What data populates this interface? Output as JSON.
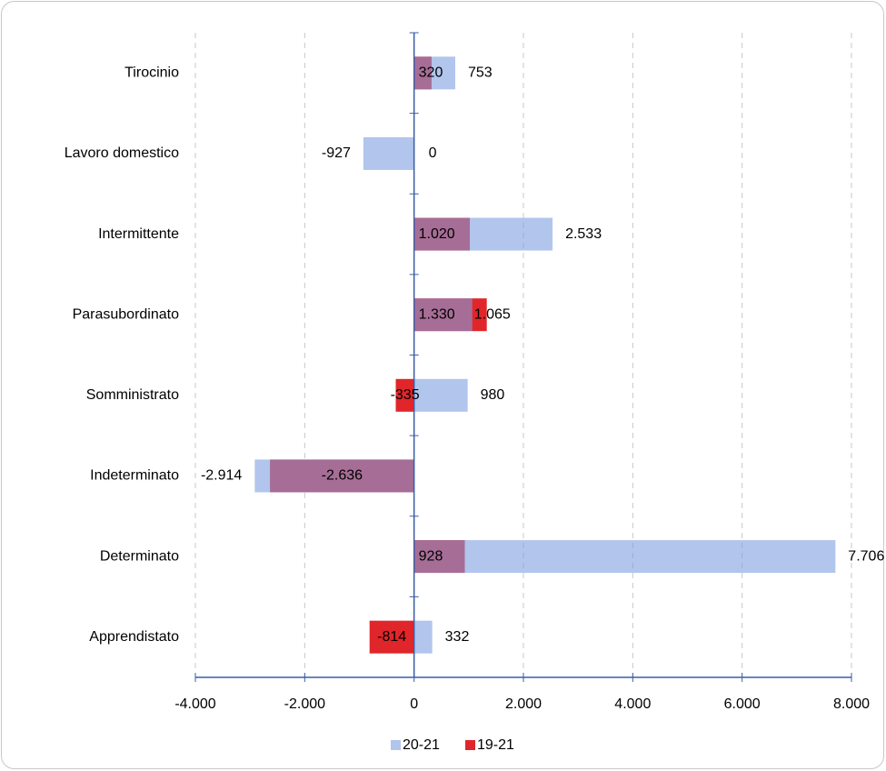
{
  "chart_data": {
    "type": "bar",
    "orientation": "horizontal",
    "overlap": true,
    "categories": [
      "Tirocinio",
      "Lavoro domestico",
      "Intermittente",
      "Parasubordinato",
      "Somministrato",
      "Indeterminato",
      "Determinato",
      "Apprendistato"
    ],
    "series": [
      {
        "name": "19-21",
        "color": "#e0262a",
        "values": [
          320,
          0,
          1020,
          1330,
          -335,
          -2636,
          928,
          -814
        ],
        "value_labels": [
          "320",
          "0",
          "1.020",
          "1.330",
          "-335",
          "-2.636",
          "928",
          "-814"
        ]
      },
      {
        "name": "20-21",
        "color": "#7f9fe0",
        "values": [
          753,
          -927,
          2533,
          1065,
          980,
          -2914,
          7706,
          332
        ],
        "value_labels": [
          "753",
          "-927",
          "2.533",
          "1.065",
          "980",
          "-2.914",
          "7.706",
          "332"
        ]
      }
    ],
    "xlim": [
      -4000,
      8000
    ],
    "xticks": [
      {
        "value": -4000,
        "label": "-4.000"
      },
      {
        "value": -2000,
        "label": "-2.000"
      },
      0,
      {
        "value": 2000,
        "label": "2.000"
      },
      {
        "value": 4000,
        "label": "4.000"
      },
      {
        "value": 6000,
        "label": "6.000"
      },
      {
        "value": 8000,
        "label": "8.000"
      }
    ],
    "grid": true,
    "legend": "bottom"
  }
}
